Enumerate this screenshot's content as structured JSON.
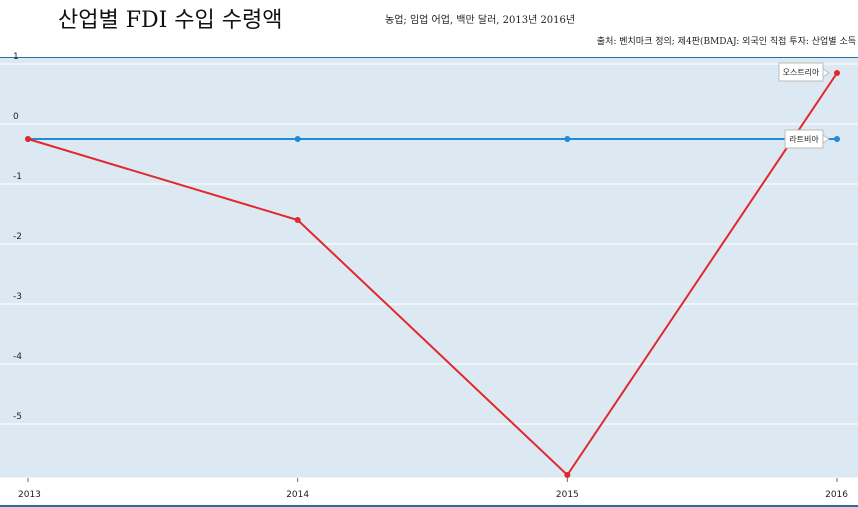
{
  "header": {
    "title": "산업별 FDI 수입 수령액",
    "subtitle": "농업; 임업 어업, 백만 달러, 2013년 2016년",
    "source": "출처: 벤치마크 정의; 제4판(BMDAJ: 외국인 직접 투자: 산업별 소득"
  },
  "chart_data": {
    "type": "line",
    "title": "산업별 FDI 수입 수령액",
    "xlabel": "",
    "ylabel": "",
    "x": [
      "2013",
      "2014",
      "2015",
      "2016"
    ],
    "y_ticks": [
      1,
      0,
      -1,
      -2,
      -3,
      -4,
      -5
    ],
    "ylim": [
      -5.65,
      1.35
    ],
    "grid": true,
    "series": [
      {
        "name": "오스트리아",
        "values": [
          0,
          -1.35,
          -5.6,
          1.1
        ],
        "color": "#e2272d"
      },
      {
        "name": "라트비아",
        "values": [
          0,
          0,
          0,
          0
        ],
        "color": "#1f8dd6"
      }
    ]
  },
  "colors": {
    "plot_background": "#dde9f2",
    "grid": "#ffffff",
    "axis": "#2a6f9a"
  }
}
